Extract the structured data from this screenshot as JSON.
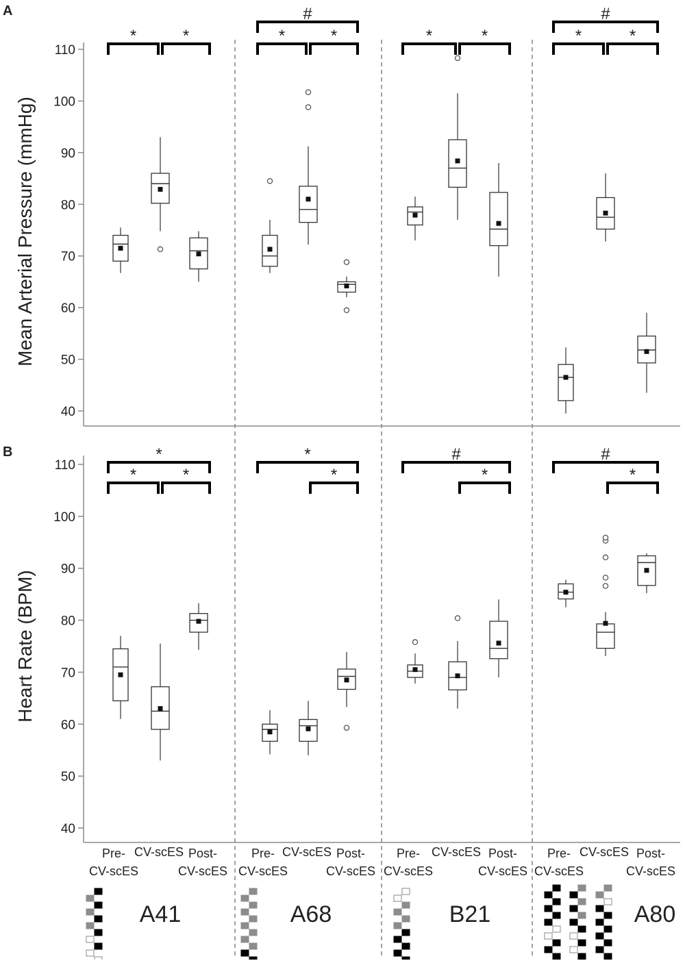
{
  "panel_labels": [
    "A",
    "B"
  ],
  "x_tick_labels": [
    [
      "Pre-",
      "CV-scES"
    ],
    [
      "CV-scES"
    ],
    [
      "Post-",
      "CV-scES"
    ]
  ],
  "subjects": [
    "A41",
    "A68",
    "B21",
    "A80"
  ],
  "chart_data": [
    {
      "type": "box",
      "panel": "A",
      "ylabel": "Mean Arterial Pressure (mmHg)",
      "ylim": [
        38,
        112
      ],
      "yticks": [
        40,
        50,
        60,
        70,
        80,
        90,
        100,
        110
      ],
      "grid": false,
      "categories": [
        "Pre-CV-scES",
        "CV-scES",
        "Post-CV-scES"
      ],
      "groups": [
        {
          "name": "A41",
          "boxes": [
            {
              "min": 66.7,
              "q1": 69.0,
              "median": 72.3,
              "q3": 74.0,
              "max": 75.5,
              "mean": 71.5,
              "outliers": []
            },
            {
              "min": 74.8,
              "q1": 80.2,
              "median": 84.0,
              "q3": 86.0,
              "max": 93.0,
              "mean": 82.9,
              "outliers": [
                71.3
              ]
            },
            {
              "min": 65.0,
              "q1": 67.5,
              "median": 71.0,
              "q3": 73.5,
              "max": 74.8,
              "mean": 70.4,
              "outliers": []
            }
          ],
          "significance": [
            {
              "from": 0,
              "to": 1,
              "label": "*",
              "level": 1
            },
            {
              "from": 1,
              "to": 2,
              "label": "*",
              "level": 1
            }
          ]
        },
        {
          "name": "A68",
          "boxes": [
            {
              "min": 66.7,
              "q1": 68.0,
              "median": 70.0,
              "q3": 74.0,
              "max": 77.0,
              "mean": 71.3,
              "outliers": [
                84.5
              ]
            },
            {
              "min": 72.2,
              "q1": 76.5,
              "median": 79.0,
              "q3": 83.5,
              "max": 91.2,
              "mean": 81.0,
              "outliers": [
                98.8,
                101.7
              ]
            },
            {
              "min": 62.0,
              "q1": 63.0,
              "median": 64.5,
              "q3": 65.0,
              "max": 66.0,
              "mean": 64.2,
              "outliers": [
                68.8,
                59.5
              ]
            }
          ],
          "significance": [
            {
              "from": 0,
              "to": 1,
              "label": "*",
              "level": 1
            },
            {
              "from": 1,
              "to": 2,
              "label": "*",
              "level": 1
            },
            {
              "from": 0,
              "to": 2,
              "label": "#",
              "level": 2
            }
          ]
        },
        {
          "name": "B21",
          "boxes": [
            {
              "min": 73.0,
              "q1": 76.0,
              "median": 78.5,
              "q3": 79.5,
              "max": 81.5,
              "mean": 77.9,
              "outliers": []
            },
            {
              "min": 77.0,
              "q1": 83.3,
              "median": 87.0,
              "q3": 92.5,
              "max": 101.5,
              "mean": 88.4,
              "outliers": [
                108.3
              ]
            },
            {
              "min": 66.0,
              "q1": 72.0,
              "median": 75.2,
              "q3": 82.3,
              "max": 88.0,
              "mean": 76.3,
              "outliers": []
            }
          ],
          "significance": [
            {
              "from": 0,
              "to": 1,
              "label": "*",
              "level": 1
            },
            {
              "from": 1,
              "to": 2,
              "label": "*",
              "level": 1
            }
          ]
        },
        {
          "name": "A80",
          "boxes": [
            {
              "min": 39.5,
              "q1": 42.0,
              "median": 46.5,
              "q3": 49.0,
              "max": 52.3,
              "mean": 46.5,
              "outliers": []
            },
            {
              "min": 72.8,
              "q1": 75.2,
              "median": 77.5,
              "q3": 81.3,
              "max": 86.0,
              "mean": 78.3,
              "outliers": []
            },
            {
              "min": 43.5,
              "q1": 49.3,
              "median": 51.8,
              "q3": 54.5,
              "max": 59.0,
              "mean": 51.5,
              "outliers": []
            }
          ],
          "significance": [
            {
              "from": 0,
              "to": 1,
              "label": "*",
              "level": 1
            },
            {
              "from": 1,
              "to": 2,
              "label": "*",
              "level": 1
            },
            {
              "from": 0,
              "to": 2,
              "label": "#",
              "level": 2
            }
          ]
        }
      ]
    },
    {
      "type": "box",
      "panel": "B",
      "ylabel": "Heart Rate (BPM)",
      "ylim": [
        38,
        112
      ],
      "yticks": [
        40,
        50,
        60,
        70,
        80,
        90,
        100,
        110
      ],
      "grid": false,
      "categories": [
        "Pre-CV-scES",
        "CV-scES",
        "Post-CV-scES"
      ],
      "groups": [
        {
          "name": "A41",
          "boxes": [
            {
              "min": 61.0,
              "q1": 64.5,
              "median": 71.0,
              "q3": 74.5,
              "max": 77.0,
              "mean": 69.5,
              "outliers": []
            },
            {
              "min": 53.0,
              "q1": 59.0,
              "median": 62.5,
              "q3": 67.2,
              "max": 75.5,
              "mean": 63.0,
              "outliers": []
            },
            {
              "min": 74.3,
              "q1": 77.7,
              "median": 80.0,
              "q3": 81.3,
              "max": 83.3,
              "mean": 79.8,
              "outliers": []
            }
          ],
          "significance": [
            {
              "from": 0,
              "to": 1,
              "label": "*",
              "level": 1
            },
            {
              "from": 1,
              "to": 2,
              "label": "*",
              "level": 1
            },
            {
              "from": 0,
              "to": 2,
              "label": "*",
              "level": 2
            }
          ]
        },
        {
          "name": "A68",
          "boxes": [
            {
              "min": 54.2,
              "q1": 56.7,
              "median": 59.0,
              "q3": 60.0,
              "max": 62.7,
              "mean": 58.5,
              "outliers": []
            },
            {
              "min": 54.0,
              "q1": 56.7,
              "median": 59.7,
              "q3": 60.9,
              "max": 64.5,
              "mean": 59.1,
              "outliers": []
            },
            {
              "min": 63.3,
              "q1": 66.7,
              "median": 69.2,
              "q3": 70.6,
              "max": 73.9,
              "mean": 68.5,
              "outliers": [
                59.3
              ]
            }
          ],
          "significance": [
            {
              "from": 1,
              "to": 2,
              "label": "*",
              "level": 1
            },
            {
              "from": 0,
              "to": 2,
              "label": "*",
              "level": 2
            }
          ]
        },
        {
          "name": "B21",
          "boxes": [
            {
              "min": 67.8,
              "q1": 69.0,
              "median": 70.2,
              "q3": 71.4,
              "max": 73.6,
              "mean": 70.5,
              "outliers": [
                75.8
              ]
            },
            {
              "min": 63.0,
              "q1": 66.6,
              "median": 69.0,
              "q3": 72.0,
              "max": 76.0,
              "mean": 69.3,
              "outliers": [
                80.4
              ]
            },
            {
              "min": 69.0,
              "q1": 72.6,
              "median": 74.6,
              "q3": 79.8,
              "max": 84.0,
              "mean": 75.6,
              "outliers": []
            }
          ],
          "significance": [
            {
              "from": 1,
              "to": 2,
              "label": "*",
              "level": 1
            },
            {
              "from": 0,
              "to": 2,
              "label": "#",
              "level": 2
            }
          ]
        },
        {
          "name": "A80",
          "boxes": [
            {
              "min": 82.5,
              "q1": 84.1,
              "median": 85.4,
              "q3": 87.0,
              "max": 87.8,
              "mean": 85.4,
              "outliers": []
            },
            {
              "min": 73.1,
              "q1": 74.6,
              "median": 77.7,
              "q3": 79.3,
              "max": 81.6,
              "mean": 79.4,
              "outliers": [
                86.6,
                88.2,
                92.1,
                95.3,
                95.9
              ]
            },
            {
              "min": 85.2,
              "q1": 86.7,
              "median": 91.1,
              "q3": 92.4,
              "max": 92.9,
              "mean": 89.6,
              "outliers": []
            }
          ],
          "significance": [
            {
              "from": 1,
              "to": 2,
              "label": "*",
              "level": 1
            },
            {
              "from": 0,
              "to": 2,
              "label": "#",
              "level": 2
            }
          ]
        }
      ]
    }
  ]
}
